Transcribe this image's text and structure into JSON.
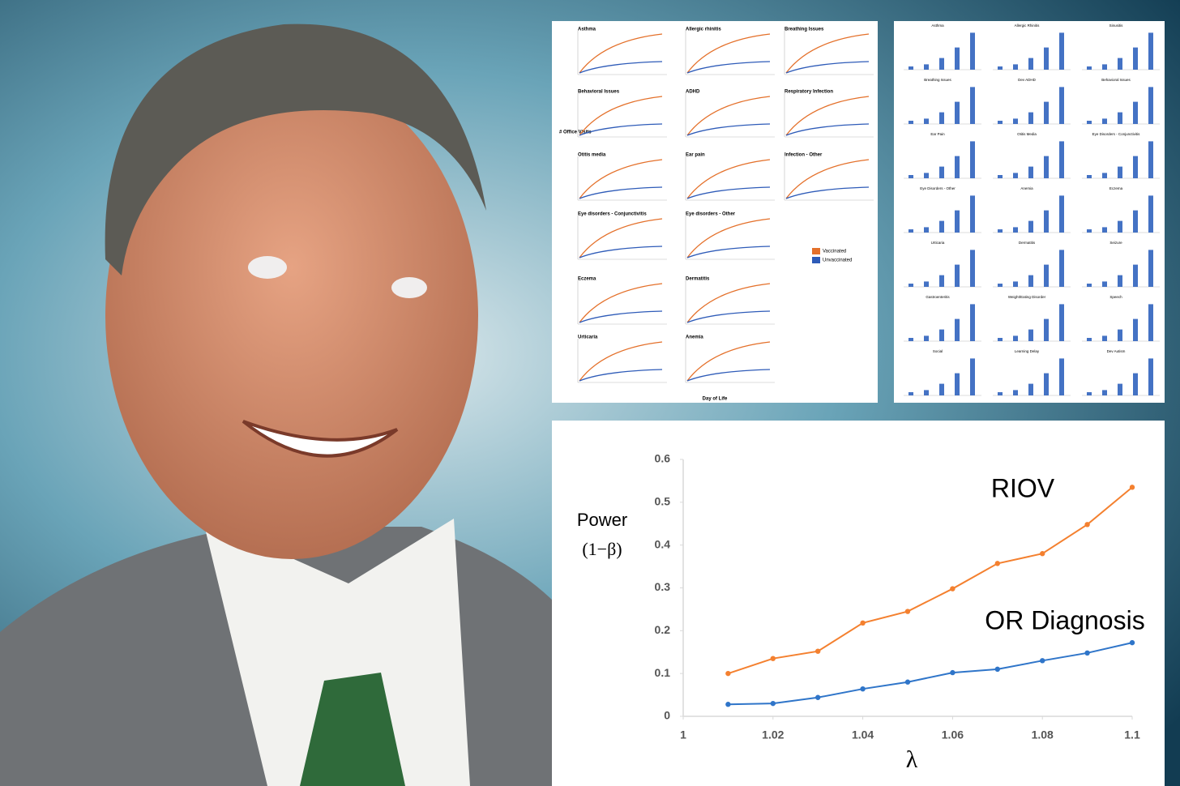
{
  "chart_data": {
    "type": "line",
    "ylabel": "Power",
    "ylabel_sub": "(1−β)",
    "xlabel": "λ",
    "x": [
      1.01,
      1.02,
      1.03,
      1.04,
      1.05,
      1.06,
      1.07,
      1.08,
      1.09,
      1.1
    ],
    "series": [
      {
        "name": "RIOV",
        "color": "#f4802f",
        "values": [
          0.1,
          0.135,
          0.152,
          0.218,
          0.245,
          0.298,
          0.357,
          0.38,
          0.448,
          0.535
        ]
      },
      {
        "name": "OR Diagnosis",
        "color": "#2f75c9",
        "values": [
          0.028,
          0.03,
          0.044,
          0.064,
          0.08,
          0.102,
          0.11,
          0.13,
          0.148,
          0.172
        ]
      }
    ],
    "xlim": [
      1,
      1.1
    ],
    "xticks": [
      1,
      1.02,
      1.04,
      1.06,
      1.08,
      1.1
    ],
    "ylim": [
      0,
      0.6
    ],
    "yticks": [
      0,
      0.1,
      0.2,
      0.3,
      0.4,
      0.5,
      0.6
    ]
  },
  "line_panels": {
    "y_axis_label": "# Office Visits",
    "x_axis_label": "Day of Life",
    "legend": [
      {
        "name": "Vaccinated",
        "color": "#e4702a"
      },
      {
        "name": "Unvaccinated",
        "color": "#2e5bb8"
      }
    ],
    "titles": [
      "Asthma",
      "Allergic rhinitis",
      "Breathing Issues",
      "Behavioral Issues",
      "ADHD",
      "Respiratory Infection",
      "Otitis media",
      "Ear pain",
      "Infection - Other",
      "Eye disorders - Conjunctivitis",
      "Eye disorders - Other",
      "Eczema",
      "Dermatitis",
      "Urticaria",
      "Anemia"
    ]
  },
  "bar_panels": {
    "titles": [
      "Asthma",
      "Allergic Rhinitis",
      "Sinusitis",
      "Breathing Issues",
      "Dev ADHD",
      "Behavioral Issues",
      "Ear Pain",
      "Otitis Media",
      "Eye Disorders - Conjunctivitis",
      "Eye Disorders - Other",
      "Anemia",
      "Eczema",
      "Urticaria",
      "Dermatitis",
      "Seizure",
      "Gastroenteritis",
      "Weight/Eating Disorder",
      "Speech",
      "Social",
      "Learning Delay",
      "Dev Autism"
    ]
  }
}
